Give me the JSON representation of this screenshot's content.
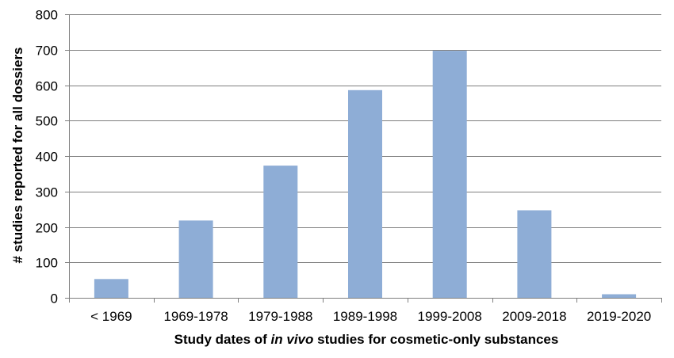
{
  "chart_data": {
    "type": "bar",
    "categories": [
      "< 1969",
      "1969-1978",
      "1979-1988",
      "1989-1998",
      "1999-2008",
      "2009-2018",
      "2019-2020"
    ],
    "values": [
      53,
      218,
      373,
      586,
      697,
      247,
      10
    ],
    "title": "",
    "xlabel": {
      "before": "Study dates of ",
      "italic": "in vivo",
      "after": " studies for cosmetic-only substances"
    },
    "ylabel": "# studies reported for all dossiers",
    "ylim": [
      0,
      800
    ],
    "yticks": [
      "0",
      "100",
      "200",
      "300",
      "400",
      "500",
      "600",
      "700",
      "800"
    ],
    "grid": true,
    "legend": "none",
    "bar_color": "#8EADD6",
    "grid_color": "#7F7F7F"
  }
}
